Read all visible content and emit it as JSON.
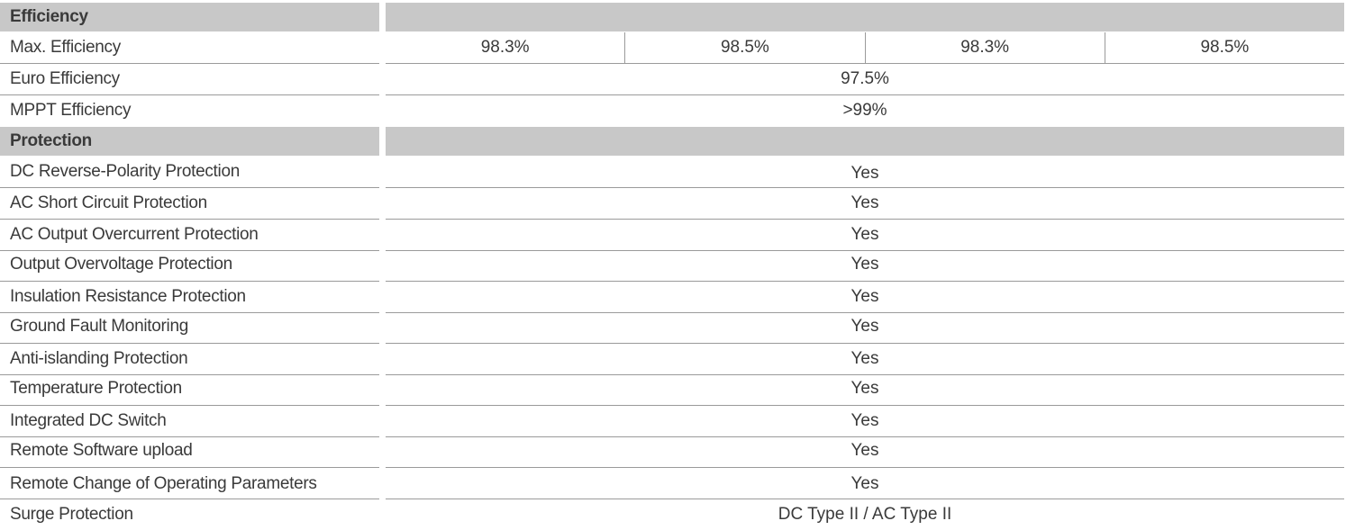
{
  "sections": {
    "efficiency": "Efficiency",
    "protection": "Protection"
  },
  "efficiency": {
    "max_label": "Max. Efficiency",
    "max_values": [
      "98.3%",
      "98.5%",
      "98.3%",
      "98.5%"
    ],
    "euro_label": "Euro Efficiency",
    "euro_value": "97.5%",
    "mppt_label": "MPPT Efficiency",
    "mppt_value": ">99%"
  },
  "protection": [
    {
      "label": "DC Reverse-Polarity Protection",
      "value": "Yes"
    },
    {
      "label": "AC Short Circuit Protection",
      "value": "Yes"
    },
    {
      "label": "AC Output Overcurrent Protection",
      "value": "Yes"
    },
    {
      "label": "Output Overvoltage Protection",
      "value": "Yes"
    },
    {
      "label": "Insulation Resistance Protection",
      "value": "Yes"
    },
    {
      "label": "Ground Fault Monitoring",
      "value": "Yes"
    },
    {
      "label": "Anti-islanding Protection",
      "value": "Yes"
    },
    {
      "label": "Temperature Protection",
      "value": "Yes"
    },
    {
      "label": "Integrated DC Switch",
      "value": "Yes"
    },
    {
      "label": "Remote Software upload",
      "value": "Yes"
    },
    {
      "label": "Remote Change of Operating Parameters",
      "value": "Yes"
    },
    {
      "label": "Surge Protection",
      "value": "DC Type II / AC Type II"
    }
  ],
  "colors": {
    "section_bg": "#c8c8c8",
    "text": "#3a3a3a",
    "rule": "#9a9a9a"
  }
}
